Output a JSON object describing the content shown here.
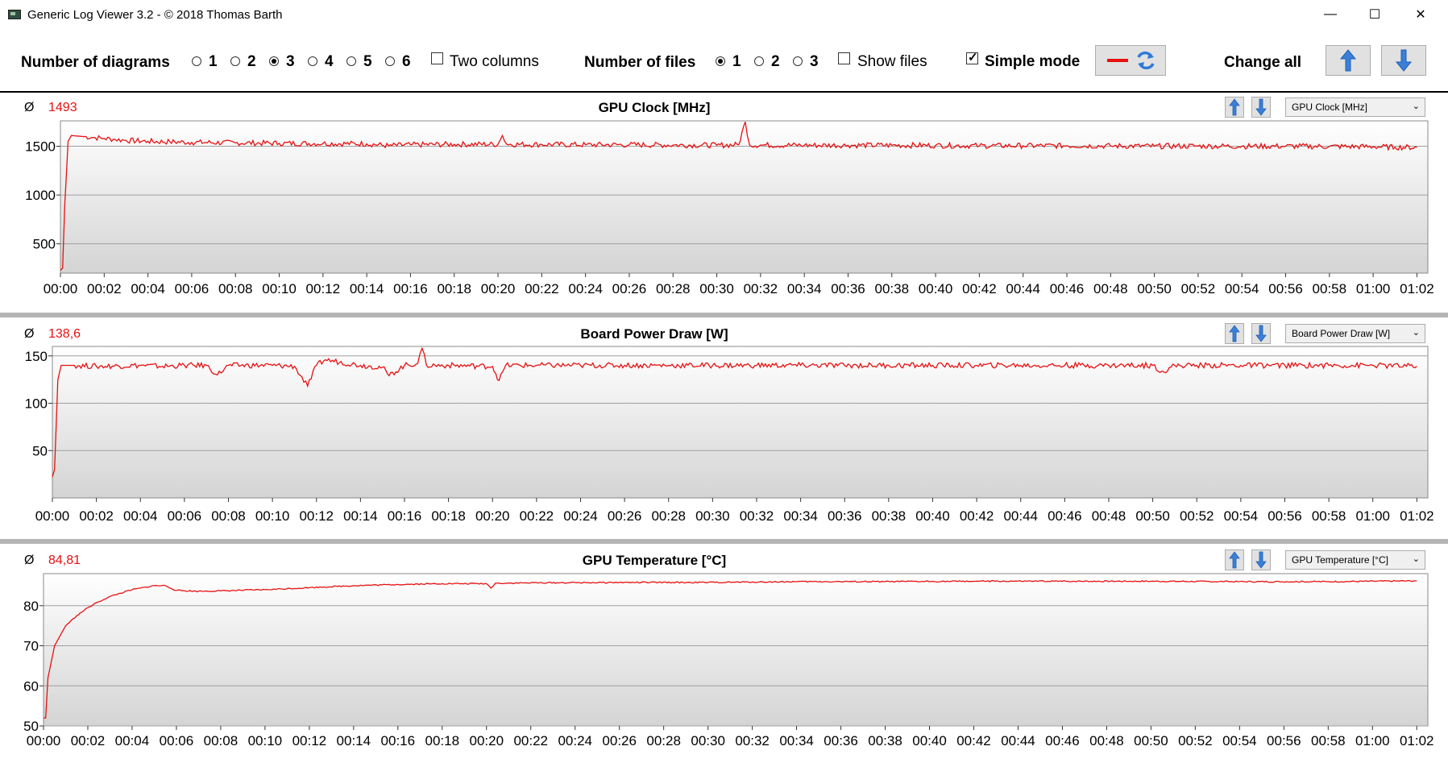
{
  "window": {
    "title": "Generic Log Viewer 3.2 - © 2018 Thomas Barth",
    "minimize": "—",
    "maximize": "☐",
    "close": "✕"
  },
  "toolbar": {
    "num_diagrams_label": "Number of diagrams",
    "diagram_options": [
      "1",
      "2",
      "3",
      "4",
      "5",
      "6"
    ],
    "diagram_selected": "3",
    "two_columns_label": "Two columns",
    "two_columns_checked": false,
    "num_files_label": "Number of files",
    "file_options": [
      "1",
      "2",
      "3"
    ],
    "file_selected": "1",
    "show_files_label": "Show files",
    "show_files_checked": false,
    "simple_mode_label": "Simple mode",
    "simple_mode_checked": true,
    "change_all_label": "Change all"
  },
  "colors": {
    "series": "#e81010",
    "grid": "#a0a0a0",
    "gradient_top": "#ffffff",
    "gradient_bottom": "#d4d4d4",
    "button_arrow": "#3a7fd8"
  },
  "panels": [
    {
      "avg_symbol": "Ø",
      "avg_value": "1493",
      "title": "GPU Clock [MHz]",
      "select_value": "GPU Clock [MHz]"
    },
    {
      "avg_symbol": "Ø",
      "avg_value": "138,6",
      "title": "Board Power Draw [W]",
      "select_value": "Board Power Draw [W]"
    },
    {
      "avg_symbol": "Ø",
      "avg_value": "84,81",
      "title": "GPU Temperature [°C]",
      "select_value": "GPU Temperature [°C]"
    }
  ],
  "chart_data": [
    {
      "type": "line",
      "title": "GPU Clock [MHz]",
      "xlabel": "",
      "ylabel": "",
      "x_unit": "minutes",
      "xlim": [
        0,
        62.5
      ],
      "ylim": [
        200,
        1760
      ],
      "y_ticks": [
        500,
        1000,
        1500
      ],
      "x_tick_labels": [
        "00:00",
        "00:02",
        "00:04",
        "00:06",
        "00:08",
        "00:10",
        "00:12",
        "00:14",
        "00:16",
        "00:18",
        "00:20",
        "00:22",
        "00:24",
        "00:26",
        "00:28",
        "00:30",
        "00:32",
        "00:34",
        "00:36",
        "00:38",
        "00:40",
        "00:42",
        "00:44",
        "00:46",
        "00:48",
        "00:50",
        "00:52",
        "00:54",
        "00:56",
        "00:58",
        "01:00",
        "01:02"
      ],
      "grid": true,
      "series": [
        {
          "x": [
            0,
            0.1,
            0.2,
            0.35,
            0.5,
            1,
            1.5,
            2,
            2.5,
            3,
            4,
            5,
            6,
            8,
            10,
            12,
            14,
            15,
            16,
            18,
            20,
            20.2,
            20.4,
            22,
            24,
            26,
            28,
            30,
            31,
            31.3,
            31.5,
            32,
            34,
            36,
            38,
            40,
            42,
            44,
            46,
            48,
            50,
            52,
            54,
            56,
            58,
            60,
            61,
            62
          ],
          "y": [
            230,
            250,
            900,
            1550,
            1610,
            1600,
            1590,
            1580,
            1570,
            1560,
            1550,
            1545,
            1540,
            1535,
            1530,
            1528,
            1525,
            1505,
            1515,
            1520,
            1520,
            1610,
            1520,
            1518,
            1515,
            1515,
            1512,
            1510,
            1515,
            1750,
            1512,
            1512,
            1510,
            1510,
            1510,
            1508,
            1505,
            1505,
            1505,
            1503,
            1500,
            1502,
            1500,
            1500,
            1498,
            1495,
            1490,
            1488
          ]
        }
      ]
    },
    {
      "type": "line",
      "title": "Board Power Draw [W]",
      "xlabel": "",
      "ylabel": "",
      "x_unit": "minutes",
      "xlim": [
        0,
        62.5
      ],
      "ylim": [
        0,
        160
      ],
      "y_ticks": [
        50,
        100,
        150
      ],
      "x_tick_labels": [
        "00:00",
        "00:02",
        "00:04",
        "00:06",
        "00:08",
        "00:10",
        "00:12",
        "00:14",
        "00:16",
        "00:18",
        "00:20",
        "00:22",
        "00:24",
        "00:26",
        "00:28",
        "00:30",
        "00:32",
        "00:34",
        "00:36",
        "00:38",
        "00:40",
        "00:42",
        "00:44",
        "00:46",
        "00:48",
        "00:50",
        "00:52",
        "00:54",
        "00:56",
        "00:58",
        "01:00",
        "01:02"
      ],
      "grid": true,
      "series": [
        {
          "x": [
            0,
            0.1,
            0.25,
            0.4,
            1,
            2,
            4,
            5,
            6,
            7,
            7.5,
            8,
            10,
            11,
            11.6,
            12,
            12.4,
            14,
            15,
            15.3,
            16,
            16.6,
            16.8,
            17,
            18,
            20,
            20.3,
            20.6,
            22,
            24,
            26,
            28,
            30,
            32,
            34,
            36,
            38,
            40,
            42,
            44,
            46,
            48,
            50,
            50.5,
            51,
            52,
            54,
            56,
            58,
            60,
            62
          ],
          "y": [
            22,
            30,
            125,
            140,
            140,
            139,
            140,
            139,
            140,
            140,
            130,
            140,
            140,
            139,
            118,
            140,
            146,
            140,
            138,
            129,
            140,
            142,
            158,
            140,
            140,
            139,
            124,
            140,
            140,
            140,
            140,
            140,
            140,
            140,
            140,
            140,
            140,
            140,
            140,
            140,
            140,
            140,
            140,
            133,
            140,
            140,
            140,
            140,
            140,
            140,
            139
          ]
        }
      ]
    },
    {
      "type": "line",
      "title": "GPU Temperature [°C]",
      "xlabel": "",
      "ylabel": "",
      "x_unit": "minutes",
      "xlim": [
        0,
        62.5
      ],
      "ylim": [
        50,
        88
      ],
      "y_ticks": [
        50,
        60,
        70,
        80
      ],
      "x_tick_labels": [
        "00:00",
        "00:02",
        "00:04",
        "00:06",
        "00:08",
        "00:10",
        "00:12",
        "00:14",
        "00:16",
        "00:18",
        "00:20",
        "00:22",
        "00:24",
        "00:26",
        "00:28",
        "00:30",
        "00:32",
        "00:34",
        "00:36",
        "00:38",
        "00:40",
        "00:42",
        "00:44",
        "00:46",
        "00:48",
        "00:50",
        "00:52",
        "00:54",
        "00:56",
        "00:58",
        "01:00",
        "01:02"
      ],
      "grid": true,
      "series": [
        {
          "x": [
            0,
            0.1,
            0.2,
            0.5,
            1,
            1.5,
            2,
            2.5,
            3,
            4,
            5,
            5.5,
            6,
            7,
            8,
            10,
            12,
            14,
            16,
            18,
            20,
            20.2,
            20.4,
            22,
            26,
            30,
            34,
            38,
            42,
            46,
            50,
            54,
            58,
            62
          ],
          "y": [
            52,
            52,
            62,
            70,
            75,
            77.5,
            79.5,
            81,
            82.3,
            84,
            85,
            85,
            83.8,
            83.6,
            83.7,
            84,
            84.5,
            85,
            85.3,
            85.5,
            85.5,
            84.4,
            85.6,
            85.7,
            85.8,
            85.8,
            86,
            86,
            86.1,
            86.1,
            86.1,
            86,
            86,
            86.2
          ]
        }
      ]
    }
  ]
}
